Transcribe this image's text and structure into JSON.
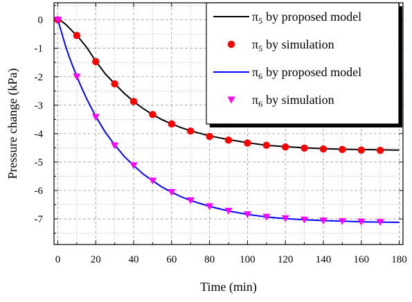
{
  "chart_data": {
    "type": "line",
    "title": "",
    "xlabel": "Time (min)",
    "ylabel": "Pressure change (kPa)",
    "xlim": [
      -2,
      182
    ],
    "ylim": [
      -7.9,
      0.6
    ],
    "x_ticks": [
      0,
      20,
      40,
      60,
      80,
      100,
      120,
      140,
      160,
      180
    ],
    "y_ticks": [
      0,
      -1,
      -2,
      -3,
      -4,
      -5,
      -6,
      -7
    ],
    "grid": true,
    "legend_position": "top-right",
    "series": [
      {
        "name": "π5 by proposed model",
        "label_base": "π",
        "label_sub": "5",
        "label_rest": "by proposed model",
        "kind": "line",
        "color": "#000000",
        "x": [
          0,
          2,
          4,
          6,
          8,
          10,
          12,
          15,
          20,
          25,
          30,
          35,
          40,
          45,
          50,
          55,
          60,
          65,
          70,
          80,
          90,
          100,
          110,
          120,
          130,
          140,
          150,
          160,
          170,
          180
        ],
        "y": [
          0,
          -0.05,
          -0.15,
          -0.28,
          -0.42,
          -0.55,
          -0.7,
          -0.95,
          -1.45,
          -1.9,
          -2.25,
          -2.58,
          -2.87,
          -3.12,
          -3.33,
          -3.51,
          -3.66,
          -3.79,
          -3.9,
          -4.08,
          -4.21,
          -4.32,
          -4.41,
          -4.46,
          -4.5,
          -4.53,
          -4.55,
          -4.56,
          -4.57,
          -4.58
        ]
      },
      {
        "name": "π5 by simulation",
        "label_base": "π",
        "label_sub": "5",
        "label_rest": "by simulation",
        "kind": "circle",
        "color": "#ff0000",
        "x": [
          0,
          10,
          20,
          30,
          40,
          50,
          60,
          70,
          80,
          90,
          100,
          110,
          120,
          130,
          140,
          150,
          160,
          170
        ],
        "y": [
          0,
          -0.55,
          -1.47,
          -2.25,
          -2.87,
          -3.33,
          -3.66,
          -3.91,
          -4.1,
          -4.23,
          -4.33,
          -4.41,
          -4.47,
          -4.51,
          -4.54,
          -4.56,
          -4.58,
          -4.59
        ]
      },
      {
        "name": "π6 by proposed model",
        "label_base": "π",
        "label_sub": "6",
        "label_rest": "by proposed model",
        "kind": "line",
        "color": "#0000ff",
        "x": [
          0,
          2,
          4,
          6,
          8,
          10,
          12,
          15,
          20,
          25,
          30,
          35,
          40,
          45,
          50,
          55,
          60,
          65,
          70,
          80,
          90,
          100,
          110,
          120,
          130,
          140,
          150,
          160,
          170,
          180
        ],
        "y": [
          0,
          -0.45,
          -0.9,
          -1.3,
          -1.65,
          -1.98,
          -2.3,
          -2.75,
          -3.4,
          -3.95,
          -4.4,
          -4.8,
          -5.12,
          -5.42,
          -5.66,
          -5.88,
          -6.06,
          -6.22,
          -6.35,
          -6.56,
          -6.72,
          -6.84,
          -6.93,
          -6.99,
          -7.03,
          -7.06,
          -7.08,
          -7.1,
          -7.11,
          -7.12
        ]
      },
      {
        "name": "π6 by simulation",
        "label_base": "π",
        "label_sub": "6",
        "label_rest": "by simulation",
        "kind": "triangle-down",
        "color": "#ff00ff",
        "x": [
          0,
          10,
          20,
          30,
          40,
          50,
          60,
          70,
          80,
          90,
          100,
          110,
          120,
          130,
          140,
          150,
          160,
          170
        ],
        "y": [
          0,
          -2.0,
          -3.42,
          -4.42,
          -5.12,
          -5.66,
          -6.06,
          -6.35,
          -6.56,
          -6.72,
          -6.84,
          -6.93,
          -6.98,
          -7.03,
          -7.06,
          -7.08,
          -7.1,
          -7.11
        ]
      }
    ]
  }
}
